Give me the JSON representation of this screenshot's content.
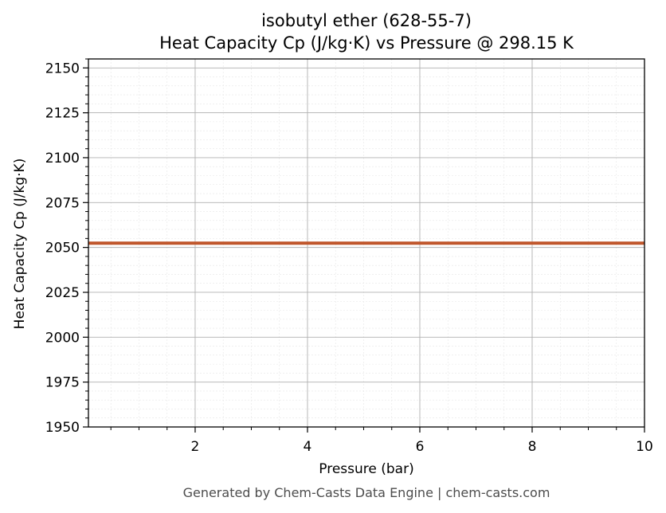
{
  "chart_data": {
    "type": "line",
    "title": "isobutyl ether (628-55-7)",
    "subtitle": "Heat Capacity Cp (J/kg·K) vs Pressure @ 298.15 K",
    "xlabel": "Pressure (bar)",
    "ylabel": "Heat Capacity Cp (J/kg·K)",
    "xlim": [
      0.1,
      10
    ],
    "ylim": [
      1950,
      2155
    ],
    "x_ticks": [
      2,
      4,
      6,
      8,
      10
    ],
    "y_ticks": [
      1950,
      1975,
      2000,
      2025,
      2050,
      2075,
      2100,
      2125,
      2150
    ],
    "x_minor_step": 0.5,
    "y_minor_step": 5,
    "grid": true,
    "series": [
      {
        "color": "#c0562b",
        "x": [
          0.1,
          10
        ],
        "y": [
          2052.4,
          2052.4
        ]
      }
    ]
  },
  "footer": "Generated by Chem-Casts Data Engine | chem-casts.com"
}
